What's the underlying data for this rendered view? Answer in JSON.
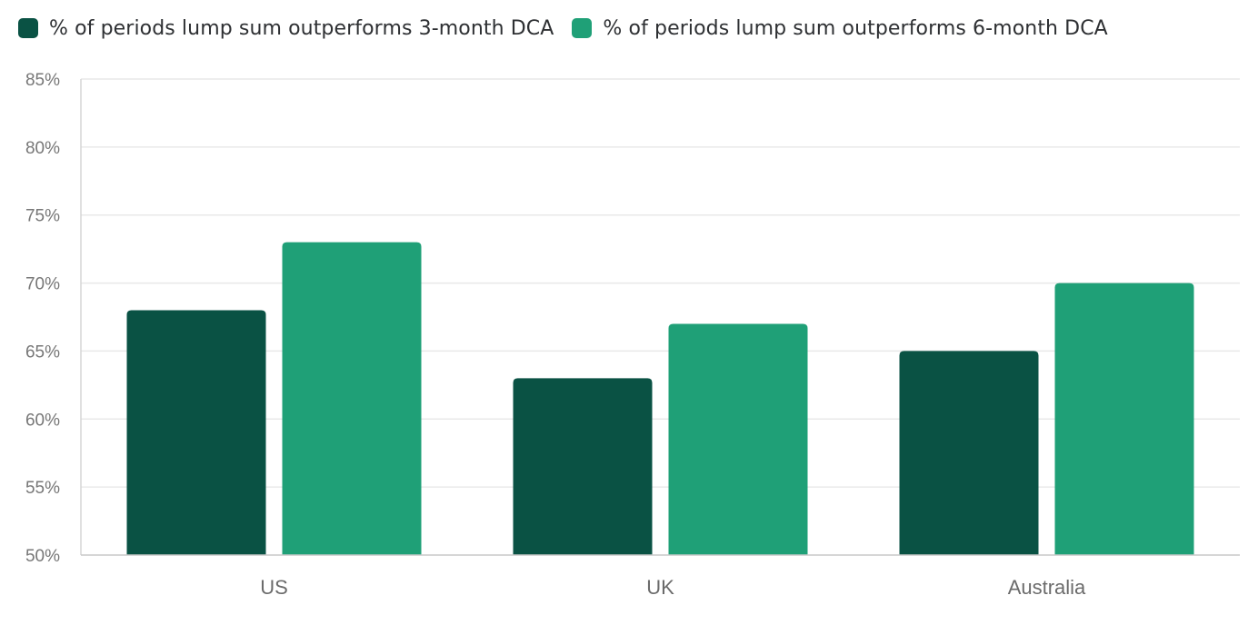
{
  "chart_data": {
    "type": "bar",
    "title": "",
    "xlabel": "",
    "ylabel": "",
    "categories": [
      "US",
      "UK",
      "Australia"
    ],
    "series": [
      {
        "name": "% of periods lump sum outperforms 3-month DCA",
        "color": "#0a5244",
        "values": [
          68,
          63,
          65
        ]
      },
      {
        "name": "% of periods lump sum outperforms 6-month DCA",
        "color": "#1fa077",
        "values": [
          73,
          67,
          70
        ]
      }
    ],
    "ylim": [
      50,
      85
    ],
    "yticks": [
      50,
      55,
      60,
      65,
      70,
      75,
      80,
      85
    ],
    "ytick_labels": [
      "50%",
      "55%",
      "60%",
      "65%",
      "70%",
      "75%",
      "80%",
      "85%"
    ],
    "grid": true,
    "legend": "top-left"
  }
}
